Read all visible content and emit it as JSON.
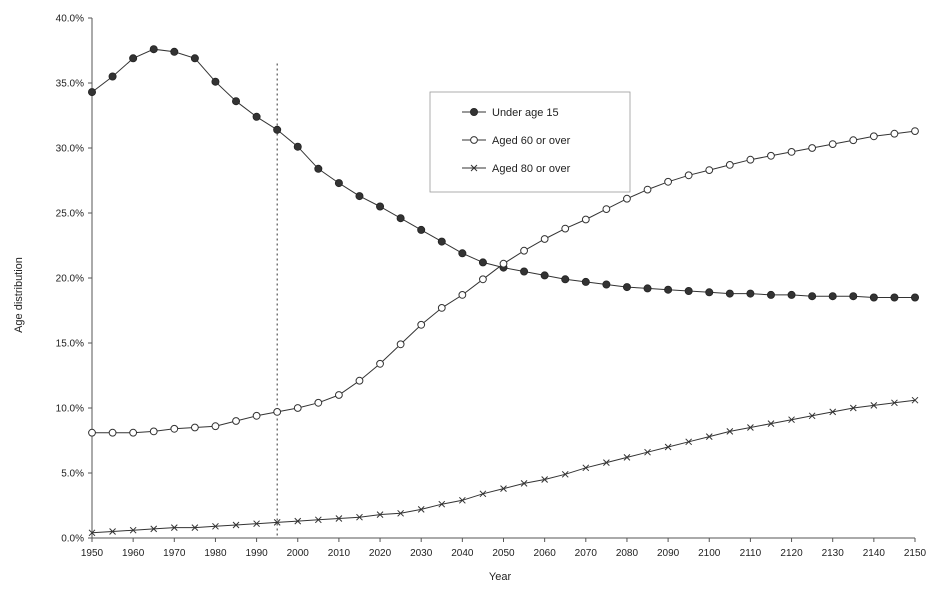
{
  "chart_data": {
    "type": "line",
    "title": "",
    "xlabel": "Year",
    "ylabel": "Age distribution",
    "xlim": [
      1950,
      2150
    ],
    "ylim": [
      0,
      40
    ],
    "x_ticks": [
      1950,
      1960,
      1970,
      1980,
      1990,
      2000,
      2010,
      2020,
      2030,
      2040,
      2050,
      2060,
      2070,
      2080,
      2090,
      2100,
      2110,
      2120,
      2130,
      2140,
      2150
    ],
    "y_ticks": [
      0,
      5,
      10,
      15,
      20,
      25,
      30,
      35,
      40
    ],
    "x_tick_labels": [
      "1950",
      "1960",
      "1970",
      "1980",
      "1990",
      "2000",
      "2010",
      "2020",
      "2030",
      "2040",
      "2050",
      "2060",
      "2070",
      "2080",
      "2090",
      "2100",
      "2110",
      "2120",
      "2130",
      "2140",
      "2150"
    ],
    "y_tick_labels": [
      "0.0%",
      "5.0%",
      "10.0%",
      "15.0%",
      "20.0%",
      "25.0%",
      "30.0%",
      "35.0%",
      "40.0%"
    ],
    "grid": false,
    "reference_line_x": 1995,
    "legend_position": "top-center",
    "x": [
      1950,
      1955,
      1960,
      1965,
      1970,
      1975,
      1980,
      1985,
      1990,
      1995,
      2000,
      2005,
      2010,
      2015,
      2020,
      2025,
      2030,
      2035,
      2040,
      2045,
      2050,
      2055,
      2060,
      2065,
      2070,
      2075,
      2080,
      2085,
      2090,
      2095,
      2100,
      2105,
      2110,
      2115,
      2120,
      2125,
      2130,
      2135,
      2140,
      2145,
      2150
    ],
    "series": [
      {
        "name": "Under age 15",
        "marker": "filled-circle",
        "values": [
          34.3,
          35.5,
          36.9,
          37.6,
          37.4,
          36.9,
          35.1,
          33.6,
          32.4,
          31.4,
          30.1,
          28.4,
          27.3,
          26.3,
          25.5,
          24.6,
          23.7,
          22.8,
          21.9,
          21.2,
          20.8,
          20.5,
          20.2,
          19.9,
          19.7,
          19.5,
          19.3,
          19.2,
          19.1,
          19.0,
          18.9,
          18.8,
          18.8,
          18.7,
          18.7,
          18.6,
          18.6,
          18.6,
          18.5,
          18.5,
          18.5
        ]
      },
      {
        "name": "Aged 60 or over",
        "marker": "open-circle",
        "values": [
          8.1,
          8.1,
          8.1,
          8.2,
          8.4,
          8.5,
          8.6,
          9.0,
          9.4,
          9.7,
          10.0,
          10.4,
          11.0,
          12.1,
          13.4,
          14.9,
          16.4,
          17.7,
          18.7,
          19.9,
          21.1,
          22.1,
          23.0,
          23.8,
          24.5,
          25.3,
          26.1,
          26.8,
          27.4,
          27.9,
          28.3,
          28.7,
          29.1,
          29.4,
          29.7,
          30.0,
          30.3,
          30.6,
          30.9,
          31.1,
          31.3
        ]
      },
      {
        "name": "Aged 80 or over",
        "marker": "x",
        "values": [
          0.4,
          0.5,
          0.6,
          0.7,
          0.8,
          0.8,
          0.9,
          1.0,
          1.1,
          1.2,
          1.3,
          1.4,
          1.5,
          1.6,
          1.8,
          1.9,
          2.2,
          2.6,
          2.9,
          3.4,
          3.8,
          4.2,
          4.5,
          4.9,
          5.4,
          5.8,
          6.2,
          6.6,
          7.0,
          7.4,
          7.8,
          8.2,
          8.5,
          8.8,
          9.1,
          9.4,
          9.7,
          10.0,
          10.2,
          10.4,
          10.6
        ]
      }
    ]
  }
}
